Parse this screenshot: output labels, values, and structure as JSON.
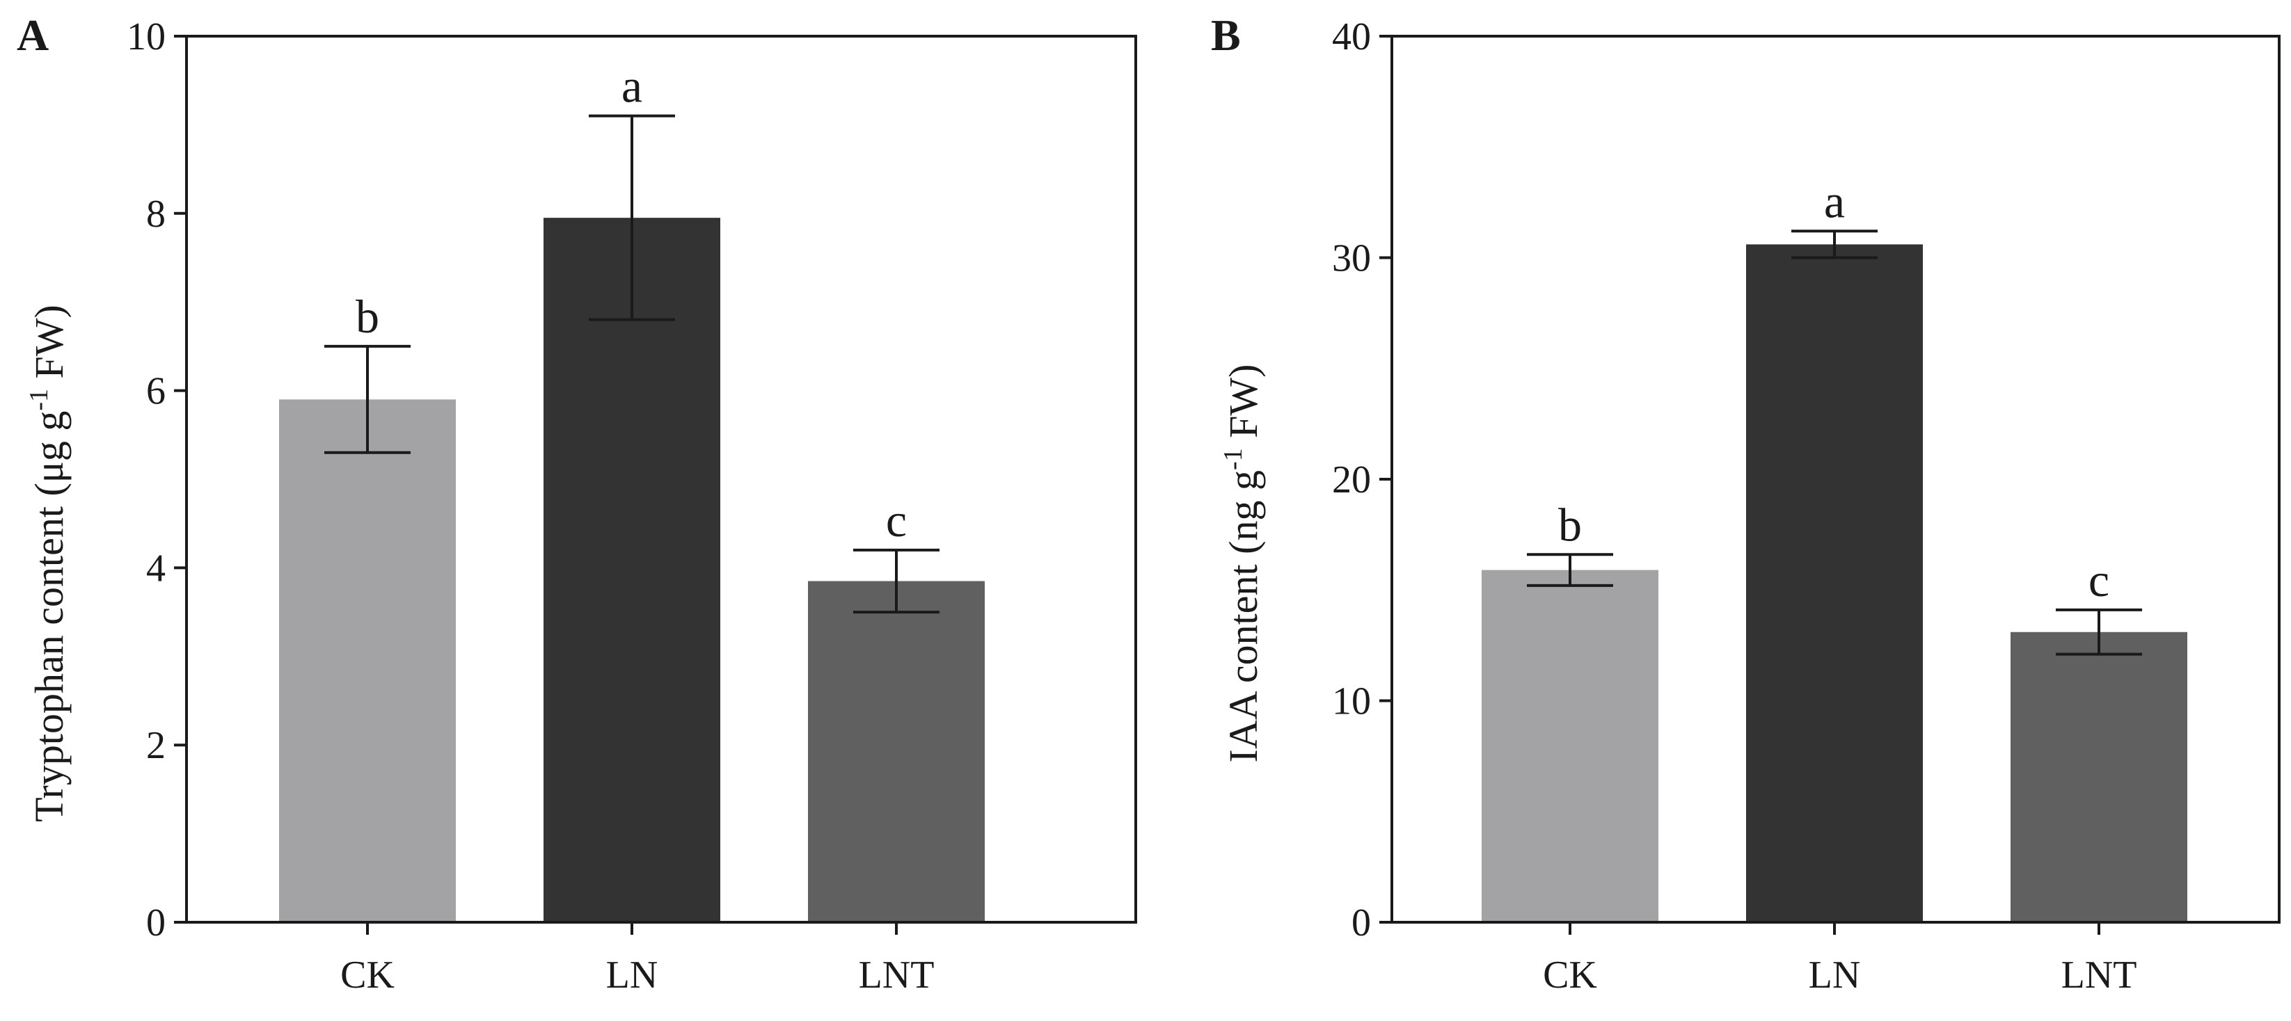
{
  "chart_data": [
    {
      "panel": "A",
      "type": "bar",
      "categories": [
        "CK",
        "LN",
        "LNT"
      ],
      "values": [
        5.9,
        7.95,
        3.85
      ],
      "errors": [
        0.6,
        1.15,
        0.35
      ],
      "significance": [
        "b",
        "a",
        "c"
      ],
      "colors": [
        "#a3a3a5",
        "#333333",
        "#606060"
      ],
      "ylabel_main": "Tryptophan content (μg g",
      "ylabel_sup": "-1",
      "ylabel_tail": " FW)",
      "ylim": [
        0,
        10
      ],
      "yticks": [
        "0",
        "2",
        "4",
        "6",
        "8",
        "10"
      ],
      "grid": false
    },
    {
      "panel": "B",
      "type": "bar",
      "categories": [
        "CK",
        "LN",
        "LNT"
      ],
      "values": [
        15.9,
        30.6,
        13.1
      ],
      "errors": [
        0.7,
        0.6,
        1.0
      ],
      "significance": [
        "b",
        "a",
        "c"
      ],
      "colors": [
        "#a3a3a5",
        "#333333",
        "#606060"
      ],
      "ylabel_main": "IAA content (ng g",
      "ylabel_sup": "-1",
      "ylabel_tail": " FW)",
      "ylim": [
        0,
        40
      ],
      "yticks": [
        "0",
        "10",
        "20",
        "30",
        "40"
      ],
      "grid": false
    }
  ]
}
